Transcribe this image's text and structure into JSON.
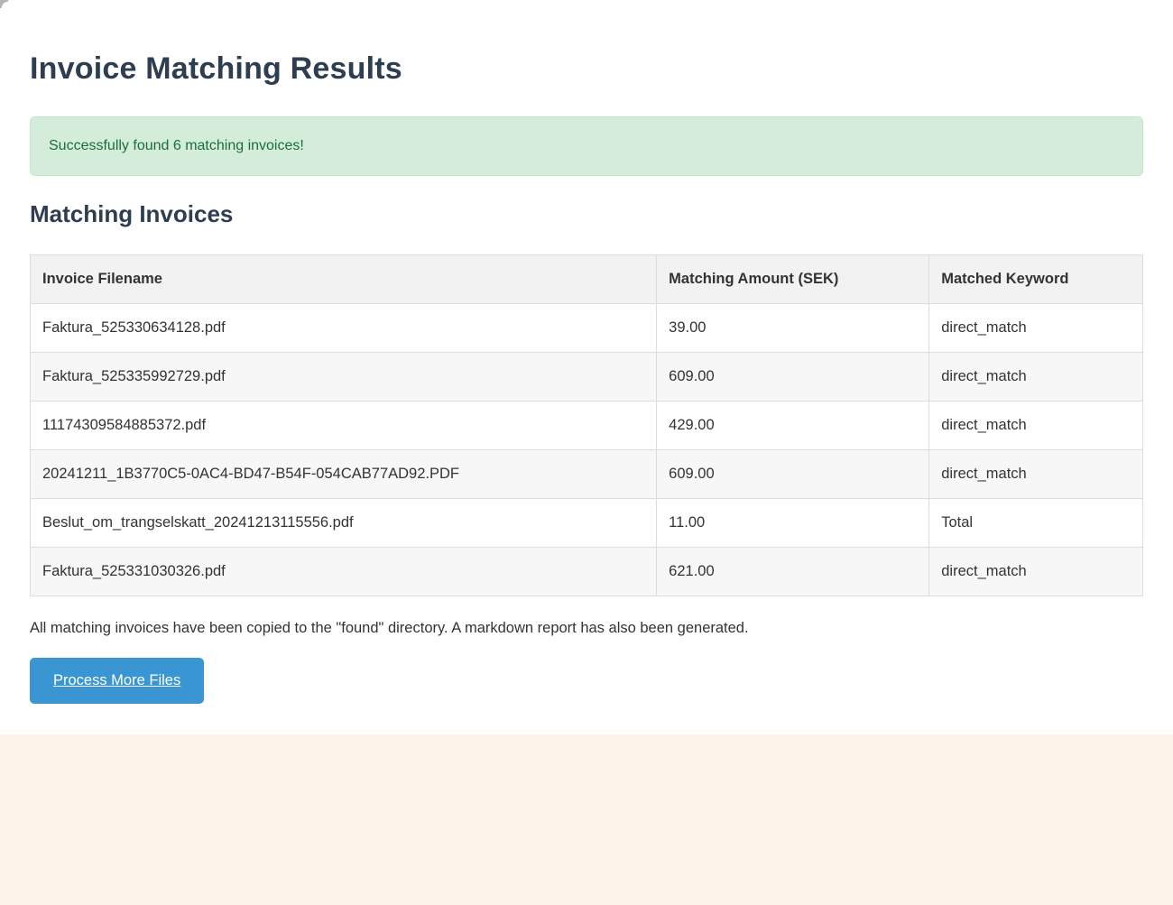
{
  "page": {
    "title": "Invoice Matching Results",
    "alert": {
      "message": "Successfully found 6 matching invoices!"
    },
    "section_title": "Matching Invoices",
    "table": {
      "columns": [
        "Invoice Filename",
        "Matching Amount (SEK)",
        "Matched Keyword"
      ],
      "rows": [
        [
          "Faktura_525330634128.pdf",
          "39.00",
          "direct_match"
        ],
        [
          "Faktura_525335992729.pdf",
          "609.00",
          "direct_match"
        ],
        [
          "11174309584885372.pdf",
          "429.00",
          "direct_match"
        ],
        [
          "20241211_1B3770C5-0AC4-BD47-B54F-054CAB77AD92.PDF",
          "609.00",
          "direct_match"
        ],
        [
          "Beslut_om_trangselskatt_20241213115556.pdf",
          "11.00",
          "Total"
        ],
        [
          "Faktura_525331030326.pdf",
          "621.00",
          "direct_match"
        ]
      ]
    },
    "footer_note": "All matching invoices have been copied to the \"found\" directory. A markdown report has also been generated.",
    "button_label": "Process More Files",
    "colors": {
      "heading": "#2c3e50",
      "alert_bg": "#d4edda",
      "alert_border": "#c3e6cb",
      "alert_text": "#1a6e3c",
      "table_header_bg": "#f2f2f2",
      "stripe_row_bg": "#f7f7f7",
      "button_bg": "#3a96d2",
      "page_bg": "#fdf3ea"
    }
  }
}
